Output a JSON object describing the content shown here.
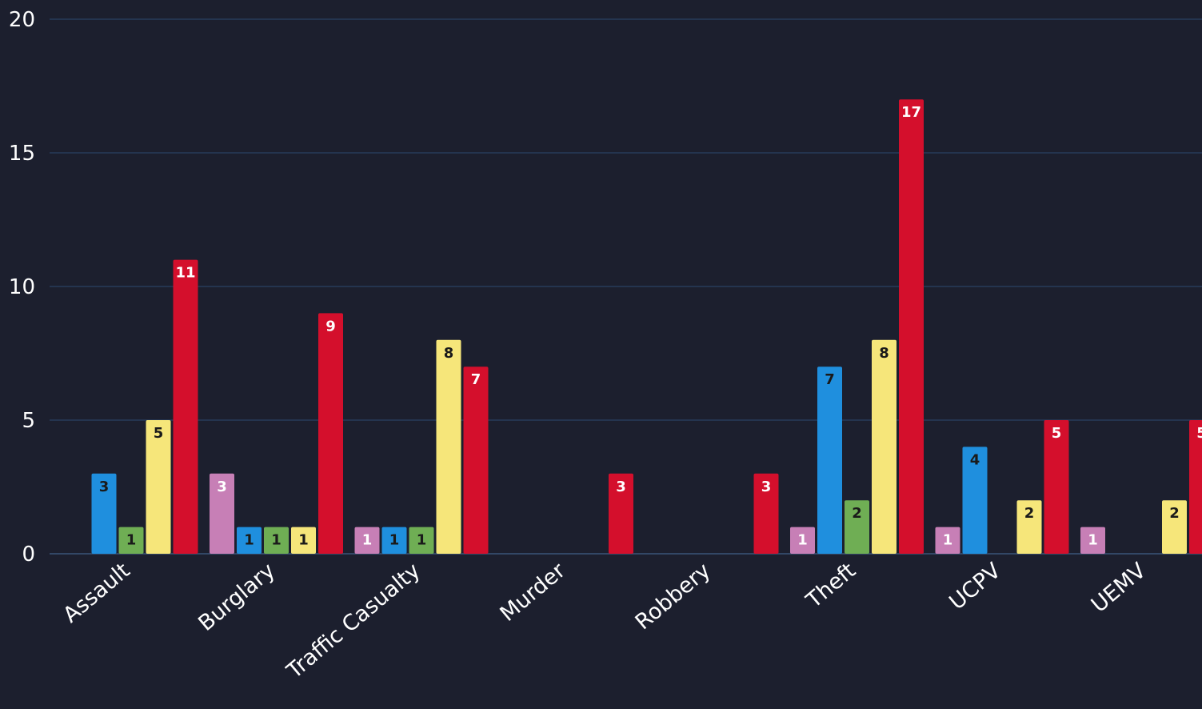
{
  "chart_data": {
    "type": "bar",
    "categories": [
      "Assault",
      "Burglary",
      "Traffic Casualty",
      "Murder",
      "Robbery",
      "Theft",
      "UCPV",
      "UEMV"
    ],
    "ylim": [
      0,
      20
    ],
    "yticks": [
      0,
      5,
      10,
      15,
      20
    ],
    "grid": true,
    "legend": "none",
    "series": [
      {
        "color": "#c77fb6",
        "values": [
          null,
          3,
          1,
          null,
          null,
          1,
          1,
          1
        ]
      },
      {
        "color": "#1f8fde",
        "values": [
          3,
          1,
          1,
          null,
          null,
          7,
          4,
          null
        ]
      },
      {
        "color": "#6fae54",
        "values": [
          1,
          1,
          1,
          null,
          null,
          2,
          null,
          null
        ]
      },
      {
        "color": "#f6e67a",
        "values": [
          5,
          1,
          8,
          null,
          null,
          8,
          2,
          2
        ]
      },
      {
        "color": "#d40f2c",
        "values": [
          11,
          9,
          7,
          3,
          3,
          17,
          5,
          5
        ]
      }
    ],
    "label_colors": [
      "#ffffff",
      "#1a1a1a",
      "#1a1a1a",
      "#1a1a1a",
      "#ffffff"
    ]
  }
}
